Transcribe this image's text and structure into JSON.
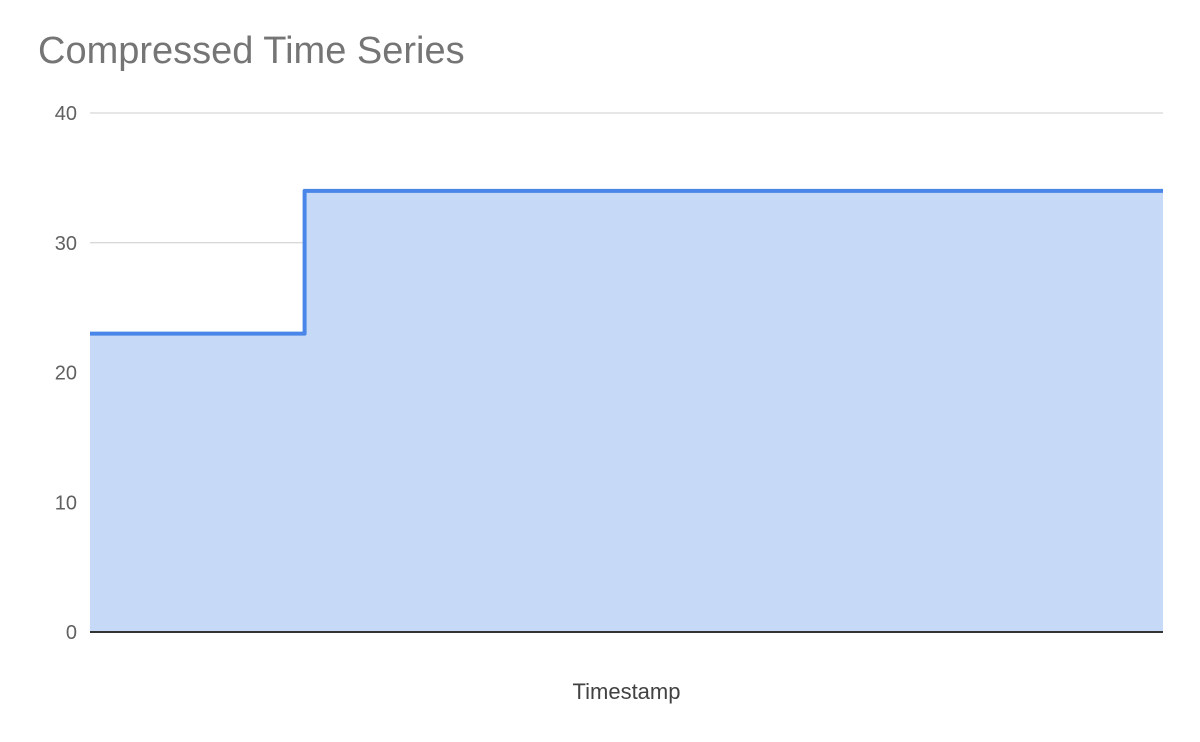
{
  "chart_data": {
    "type": "area",
    "title": "Compressed Time Series",
    "xlabel": "Timestamp",
    "ylabel": "",
    "ylim": [
      0,
      40
    ],
    "yticks": [
      "0",
      "10",
      "20",
      "30",
      "40"
    ],
    "step": true,
    "grid": true,
    "legend": "none",
    "series": [
      {
        "x": [
          0,
          0.2,
          0.2,
          1
        ],
        "values": [
          23,
          23,
          34,
          34
        ]
      }
    ],
    "colors": {
      "line": "#4a86e8",
      "fill": "#c6daf8",
      "grid": "#cccccc",
      "baseline": "#333333"
    }
  }
}
